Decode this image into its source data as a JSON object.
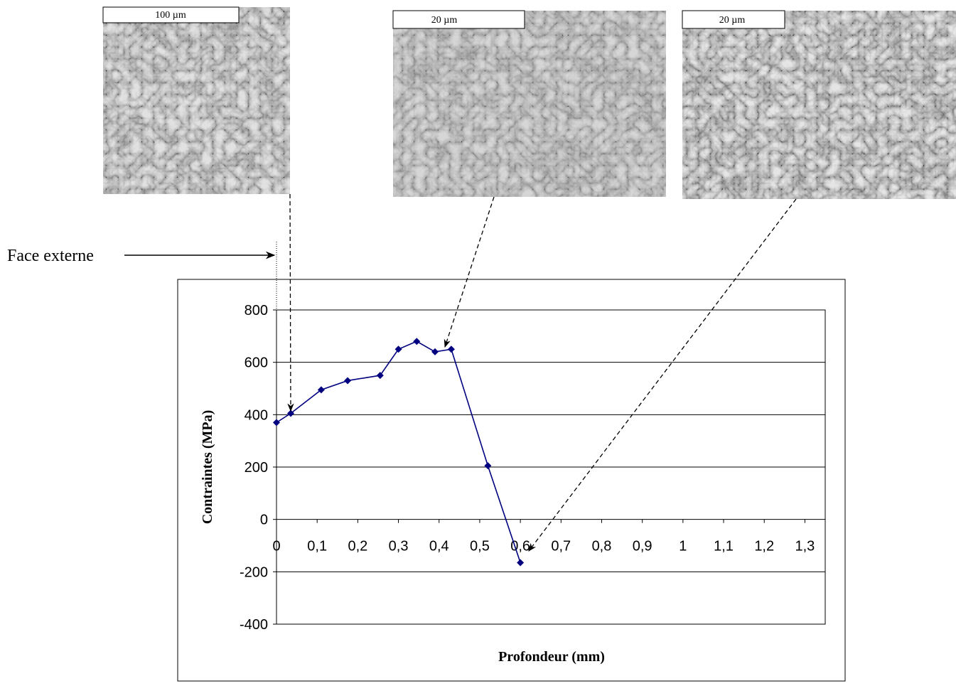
{
  "micrographs": [
    {
      "scale": "100 µm"
    },
    {
      "scale": "20 µm"
    },
    {
      "scale": "20 µm"
    }
  ],
  "chart_data": {
    "type": "line",
    "annotation": "Face externe",
    "xlabel": "Profondeur (mm)",
    "ylabel": "Contraintes (MPa)",
    "x": [
      0,
      0.035,
      0.11,
      0.175,
      0.255,
      0.3,
      0.345,
      0.39,
      0.43,
      0.52,
      0.6
    ],
    "series": [
      {
        "color": "#000080",
        "values": [
          370,
          405,
          495,
          530,
          550,
          650,
          680,
          640,
          650,
          205,
          -165
        ]
      }
    ],
    "xlim": [
      0,
      1.35
    ],
    "xticks": [
      0,
      {
        "value": 0.1,
        "label": "0,1"
      },
      {
        "value": 0.2,
        "label": "0,2"
      },
      {
        "value": 0.3,
        "label": "0,3"
      },
      {
        "value": 0.4,
        "label": "0,4"
      },
      {
        "value": 0.5,
        "label": "0,5"
      },
      {
        "value": 0.6,
        "label": "0,6"
      },
      {
        "value": 0.7,
        "label": "0,7"
      },
      {
        "value": 0.8,
        "label": "0,8"
      },
      {
        "value": 0.9,
        "label": "0,9"
      },
      1,
      {
        "value": 1.1,
        "label": "1,1"
      },
      {
        "value": 1.2,
        "label": "1,2"
      },
      {
        "value": 1.3,
        "label": "1,3"
      }
    ],
    "ylim": [
      -400,
      800
    ],
    "yticks": [
      -400,
      -200,
      0,
      200,
      400,
      600,
      800
    ],
    "grid": true
  }
}
